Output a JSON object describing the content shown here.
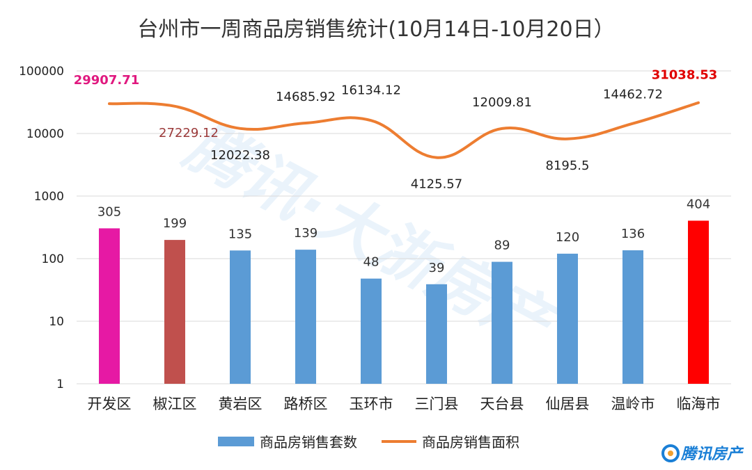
{
  "chart_data": {
    "type": "bar+line",
    "title": "台州市一周商品房销售统计(10月14日-10月20日）",
    "y_scale": "log",
    "ylim": [
      1,
      100000
    ],
    "y_ticks": [
      "1",
      "10",
      "100",
      "1000",
      "10000",
      "100000"
    ],
    "categories": [
      "开发区",
      "椒江区",
      "黄岩区",
      "路桥区",
      "玉环市",
      "三门县",
      "天台县",
      "仙居县",
      "温岭市",
      "临海市"
    ],
    "series": [
      {
        "name": "商品房销售套数",
        "type": "bar",
        "values": [
          305,
          199,
          135,
          139,
          48,
          39,
          89,
          120,
          136,
          404
        ],
        "labels": [
          "305",
          "199",
          "135",
          "139",
          "48",
          "39",
          "89",
          "120",
          "136",
          "404"
        ],
        "colors": [
          "#e619a4",
          "#c0504d",
          "#5b9bd5",
          "#5b9bd5",
          "#5b9bd5",
          "#5b9bd5",
          "#5b9bd5",
          "#5b9bd5",
          "#5b9bd5",
          "#ff0000"
        ]
      },
      {
        "name": "商品房销售面积",
        "type": "line",
        "values": [
          29907.71,
          27229.12,
          12022.38,
          14685.92,
          16134.12,
          4125.57,
          12009.81,
          8195.5,
          14462.72,
          31038.53
        ],
        "labels": [
          "29907.71",
          "27229.12",
          "12022.38",
          "14685.92",
          "16134.12",
          "4125.57",
          "12009.81",
          "8195.5",
          "14462.72",
          "31038.53"
        ],
        "color": "#ed7d31"
      }
    ],
    "legend_position": "bottom",
    "grid": true
  },
  "brand": {
    "text": "腾讯房产",
    "watermark": "腾讯·大浙房产"
  },
  "colors": {
    "bar_default": "#5b9bd5",
    "line": "#ed7d31",
    "grid": "#d9d9d9"
  }
}
